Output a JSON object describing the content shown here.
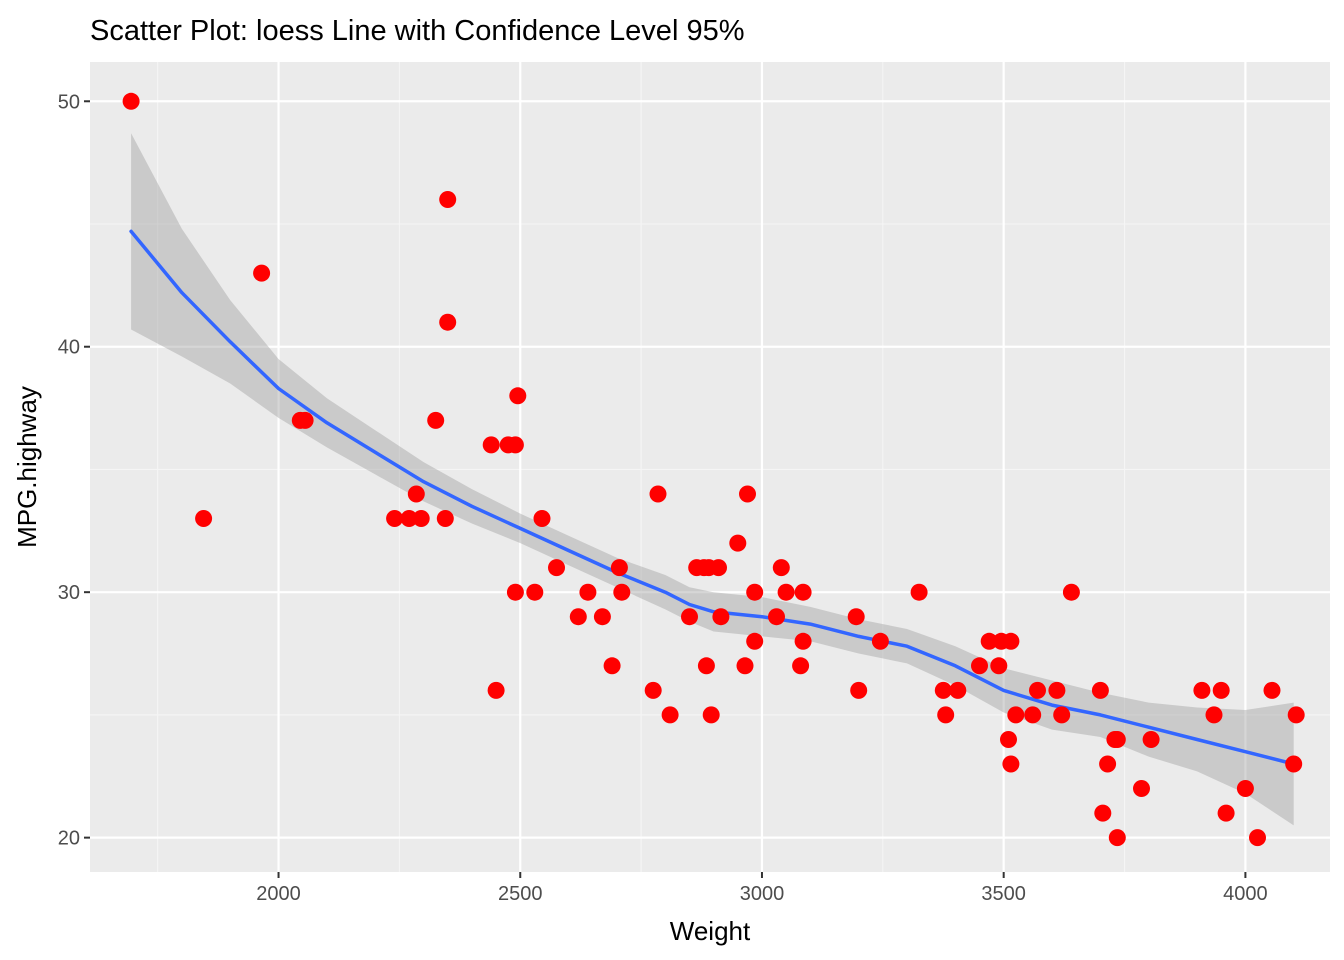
{
  "chart_data": {
    "type": "scatter",
    "title": "Scatter Plot: loess Line with Confidence Level 95%",
    "xlabel": "Weight",
    "ylabel": "MPG.highway",
    "xlim": [
      1610,
      4175
    ],
    "ylim": [
      18.6,
      51.6
    ],
    "x_ticks": [
      2000,
      2500,
      3000,
      3500,
      4000
    ],
    "x_tick_labels": [
      "2000",
      "2500",
      "3000",
      "3500",
      "4000"
    ],
    "y_ticks": [
      20,
      30,
      40,
      50
    ],
    "y_tick_labels": [
      "20",
      "30",
      "40",
      "50"
    ],
    "grid": true,
    "colors": {
      "panel_bg": "#EBEBEB",
      "grid_major": "#FFFFFF",
      "grid_minor": "#F5F5F5",
      "point": "#FF0000",
      "smooth_line": "#3366FF",
      "ribbon": "#999999"
    },
    "points": [
      {
        "x": 1695,
        "y": 50
      },
      {
        "x": 1845,
        "y": 33
      },
      {
        "x": 1965,
        "y": 43
      },
      {
        "x": 2045,
        "y": 37
      },
      {
        "x": 2055,
        "y": 37
      },
      {
        "x": 2240,
        "y": 33
      },
      {
        "x": 2270,
        "y": 33
      },
      {
        "x": 2285,
        "y": 34
      },
      {
        "x": 2295,
        "y": 33
      },
      {
        "x": 2325,
        "y": 37
      },
      {
        "x": 2345,
        "y": 33
      },
      {
        "x": 2350,
        "y": 46
      },
      {
        "x": 2350,
        "y": 41
      },
      {
        "x": 2440,
        "y": 36
      },
      {
        "x": 2450,
        "y": 26
      },
      {
        "x": 2475,
        "y": 36
      },
      {
        "x": 2490,
        "y": 36
      },
      {
        "x": 2490,
        "y": 30
      },
      {
        "x": 2495,
        "y": 38
      },
      {
        "x": 2530,
        "y": 30
      },
      {
        "x": 2545,
        "y": 33
      },
      {
        "x": 2575,
        "y": 31
      },
      {
        "x": 2620,
        "y": 29
      },
      {
        "x": 2640,
        "y": 30
      },
      {
        "x": 2670,
        "y": 29
      },
      {
        "x": 2690,
        "y": 27
      },
      {
        "x": 2705,
        "y": 31
      },
      {
        "x": 2710,
        "y": 30
      },
      {
        "x": 2775,
        "y": 26
      },
      {
        "x": 2785,
        "y": 34
      },
      {
        "x": 2810,
        "y": 25
      },
      {
        "x": 2850,
        "y": 29
      },
      {
        "x": 2865,
        "y": 31
      },
      {
        "x": 2880,
        "y": 31
      },
      {
        "x": 2885,
        "y": 27
      },
      {
        "x": 2890,
        "y": 31
      },
      {
        "x": 2895,
        "y": 25
      },
      {
        "x": 2910,
        "y": 31
      },
      {
        "x": 2915,
        "y": 29
      },
      {
        "x": 2950,
        "y": 32
      },
      {
        "x": 2965,
        "y": 27
      },
      {
        "x": 2970,
        "y": 34
      },
      {
        "x": 2985,
        "y": 30
      },
      {
        "x": 2985,
        "y": 28
      },
      {
        "x": 3030,
        "y": 29
      },
      {
        "x": 3040,
        "y": 31
      },
      {
        "x": 3050,
        "y": 30
      },
      {
        "x": 3080,
        "y": 27
      },
      {
        "x": 3085,
        "y": 30
      },
      {
        "x": 3085,
        "y": 28
      },
      {
        "x": 3195,
        "y": 29
      },
      {
        "x": 3200,
        "y": 26
      },
      {
        "x": 3245,
        "y": 28
      },
      {
        "x": 3325,
        "y": 30
      },
      {
        "x": 3375,
        "y": 26
      },
      {
        "x": 3380,
        "y": 25
      },
      {
        "x": 3405,
        "y": 26
      },
      {
        "x": 3450,
        "y": 27
      },
      {
        "x": 3470,
        "y": 28
      },
      {
        "x": 3490,
        "y": 27
      },
      {
        "x": 3495,
        "y": 28
      },
      {
        "x": 3510,
        "y": 24
      },
      {
        "x": 3515,
        "y": 28
      },
      {
        "x": 3515,
        "y": 23
      },
      {
        "x": 3525,
        "y": 25
      },
      {
        "x": 3560,
        "y": 25
      },
      {
        "x": 3570,
        "y": 26
      },
      {
        "x": 3610,
        "y": 26
      },
      {
        "x": 3620,
        "y": 25
      },
      {
        "x": 3640,
        "y": 30
      },
      {
        "x": 3700,
        "y": 26
      },
      {
        "x": 3705,
        "y": 21
      },
      {
        "x": 3715,
        "y": 23
      },
      {
        "x": 3730,
        "y": 24
      },
      {
        "x": 3735,
        "y": 20
      },
      {
        "x": 3735,
        "y": 24
      },
      {
        "x": 3785,
        "y": 22
      },
      {
        "x": 3805,
        "y": 24
      },
      {
        "x": 3910,
        "y": 26
      },
      {
        "x": 3935,
        "y": 25
      },
      {
        "x": 3950,
        "y": 26
      },
      {
        "x": 3960,
        "y": 21
      },
      {
        "x": 4000,
        "y": 22
      },
      {
        "x": 4025,
        "y": 20
      },
      {
        "x": 4055,
        "y": 26
      },
      {
        "x": 4100,
        "y": 23
      },
      {
        "x": 4105,
        "y": 25
      }
    ],
    "series": [
      {
        "type": "loess",
        "x": [
          1695,
          1800,
          1900,
          2000,
          2100,
          2200,
          2300,
          2400,
          2500,
          2600,
          2700,
          2800,
          2850,
          2900,
          3000,
          3100,
          3200,
          3300,
          3400,
          3500,
          3600,
          3700,
          3800,
          3900,
          4000,
          4100
        ],
        "y": [
          44.7,
          42.2,
          40.2,
          38.3,
          36.9,
          35.7,
          34.5,
          33.5,
          32.6,
          31.7,
          30.8,
          30.0,
          29.5,
          29.2,
          29.0,
          28.7,
          28.2,
          27.8,
          27.0,
          26.0,
          25.4,
          25.0,
          24.5,
          24.0,
          23.5,
          23.0
        ],
        "lower": [
          40.7,
          39.6,
          38.5,
          37.1,
          35.9,
          34.8,
          33.7,
          32.8,
          32.0,
          31.1,
          30.2,
          29.3,
          28.8,
          28.4,
          28.2,
          28.0,
          27.5,
          27.1,
          26.2,
          25.1,
          24.4,
          24.1,
          23.3,
          22.7,
          21.8,
          20.5
        ],
        "upper": [
          48.7,
          44.8,
          41.9,
          39.5,
          37.9,
          36.6,
          35.3,
          34.2,
          33.2,
          32.3,
          31.4,
          30.7,
          30.2,
          30.0,
          29.8,
          29.4,
          28.9,
          28.5,
          27.8,
          26.9,
          26.4,
          25.9,
          25.5,
          25.3,
          25.2,
          25.5
        ]
      }
    ]
  }
}
